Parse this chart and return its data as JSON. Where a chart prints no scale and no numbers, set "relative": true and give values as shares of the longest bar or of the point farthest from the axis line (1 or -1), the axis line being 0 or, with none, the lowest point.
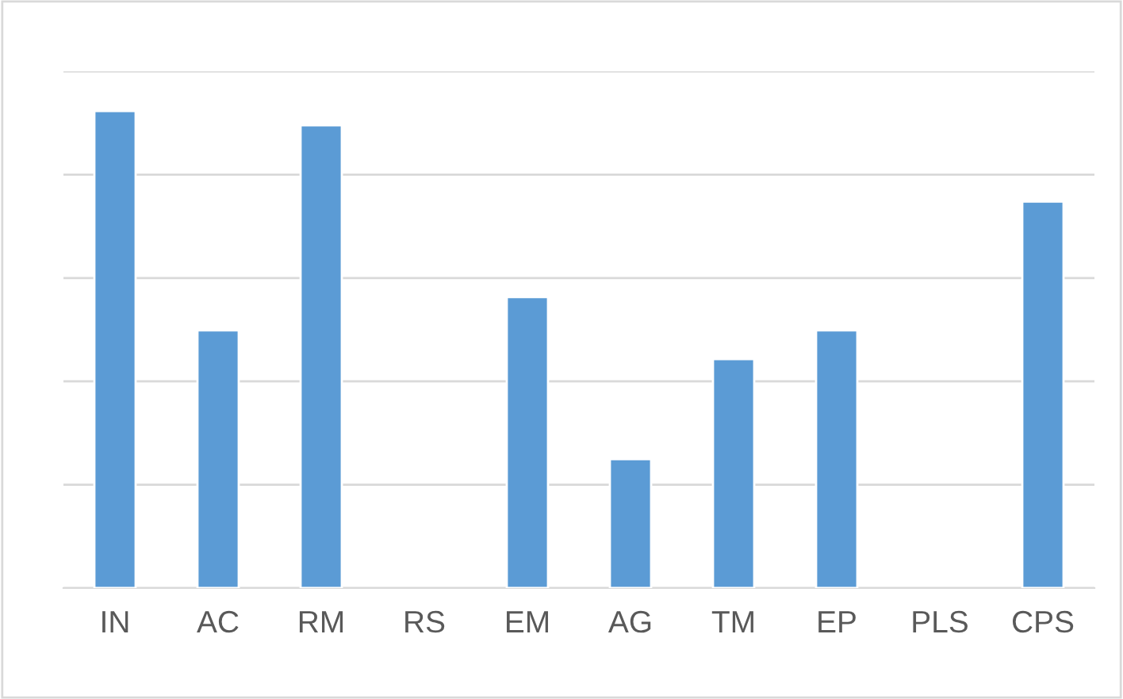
{
  "chart_data": {
    "type": "bar",
    "relative": true,
    "categories": [
      "IN",
      "AC",
      "RM",
      "RS",
      "EM",
      "AG",
      "TM",
      "EP",
      "PLS",
      "CPS"
    ],
    "values": [
      1,
      0.54,
      0.97,
      null,
      0.61,
      0.27,
      0.48,
      0.54,
      null,
      0.81
    ],
    "color": "#5b9bd5",
    "grid": "y"
  }
}
